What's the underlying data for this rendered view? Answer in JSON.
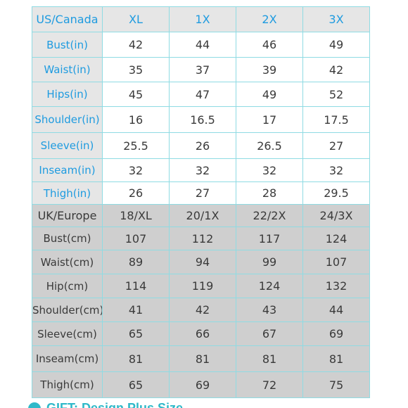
{
  "us_header": [
    "US/Canada",
    "XL",
    "1X",
    "2X",
    "3X"
  ],
  "us_rows": [
    {
      "label": "Bust(in)",
      "values": [
        "42",
        "44",
        "46",
        "49"
      ]
    },
    {
      "label": "Waist(in)",
      "values": [
        "35",
        "37",
        "39",
        "42"
      ]
    },
    {
      "label": "Hips(in)",
      "values": [
        "45",
        "47",
        "49",
        "52"
      ]
    },
    {
      "label": "Shoulder(in)",
      "values": [
        "16",
        "16.5",
        "17",
        "17.5"
      ]
    },
    {
      "label": "Sleeve(in)",
      "values": [
        "25.5",
        "26",
        "26.5",
        "27"
      ]
    },
    {
      "label": "Inseam(in)",
      "values": [
        "32",
        "32",
        "32",
        "32"
      ]
    },
    {
      "label": "Thigh(in)",
      "values": [
        "26",
        "27",
        "28",
        "29.5"
      ]
    }
  ],
  "uk_header": [
    "UK/Europe",
    "18/XL",
    "20/1X",
    "22/2X",
    "24/3X"
  ],
  "uk_rows": [
    {
      "label": "Bust(cm)",
      "values": [
        "107",
        "112",
        "117",
        "124"
      ]
    },
    {
      "label": "Waist(cm)",
      "values": [
        "89",
        "94",
        "99",
        "107"
      ]
    },
    {
      "label": "Hip(cm)",
      "values": [
        "114",
        "119",
        "124",
        "132"
      ]
    },
    {
      "label": "Shoulder(cm)",
      "values": [
        "41",
        "42",
        "43",
        "44"
      ]
    },
    {
      "label": "Sleeve(cm)",
      "values": [
        "65",
        "66",
        "67",
        "69"
      ]
    },
    {
      "label": "Inseam(cm)",
      "values": [
        "81",
        "81",
        "81",
        "81"
      ]
    },
    {
      "label": "Thigh(cm)",
      "values": [
        "65",
        "69",
        "72",
        "75"
      ]
    }
  ],
  "footer_text": "GIFT: Design Plus Size",
  "colors": {
    "accent_blue": "#1e9be0",
    "border_cyan": "#8fdbe3",
    "us_label_bg": "#e6e6e6",
    "uk_bg": "#cfcfcf",
    "footer_teal": "#2fb9c9"
  }
}
